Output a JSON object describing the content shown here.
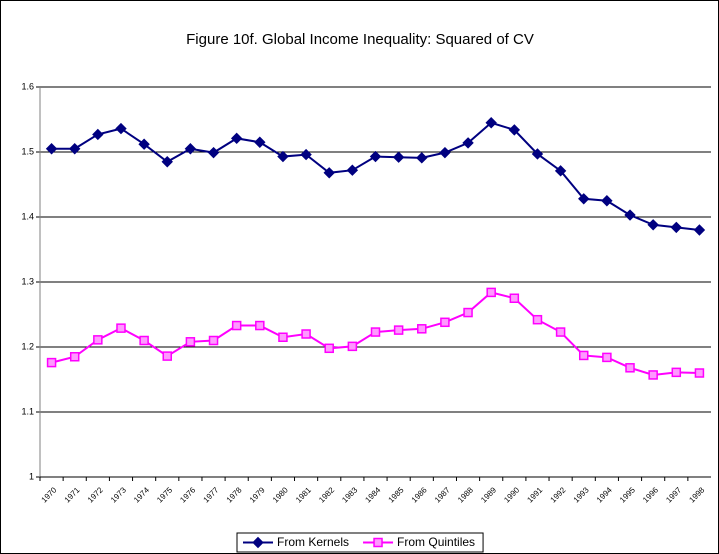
{
  "chart_data": {
    "type": "line",
    "title": "Figure 10f. Global Income Inequality: Squared of CV",
    "categories": [
      "1970",
      "1971",
      "1972",
      "1973",
      "1974",
      "1975",
      "1976",
      "1977",
      "1978",
      "1979",
      "1980",
      "1981",
      "1982",
      "1983",
      "1984",
      "1985",
      "1986",
      "1987",
      "1988",
      "1989",
      "1990",
      "1991",
      "1992",
      "1993",
      "1994",
      "1995",
      "1996",
      "1997",
      "1998"
    ],
    "series": [
      {
        "name": "From Kernels",
        "color": "#000080",
        "marker": "diamond",
        "values": [
          1.505,
          1.505,
          1.527,
          1.536,
          1.512,
          1.485,
          1.505,
          1.499,
          1.521,
          1.515,
          1.493,
          1.496,
          1.468,
          1.472,
          1.493,
          1.492,
          1.491,
          1.499,
          1.514,
          1.545,
          1.534,
          1.497,
          1.471,
          1.428,
          1.425,
          1.403,
          1.388,
          1.384,
          1.38
        ]
      },
      {
        "name": "From Quintiles",
        "color": "#ff00ff",
        "marker": "square",
        "values": [
          1.176,
          1.185,
          1.211,
          1.229,
          1.21,
          1.186,
          1.208,
          1.21,
          1.233,
          1.233,
          1.215,
          1.22,
          1.198,
          1.201,
          1.223,
          1.226,
          1.228,
          1.238,
          1.253,
          1.284,
          1.275,
          1.242,
          1.223,
          1.187,
          1.184,
          1.168,
          1.157,
          1.161,
          1.16
        ]
      }
    ],
    "ylim": [
      1,
      1.6
    ],
    "yticks": [
      1,
      1.1,
      1.2,
      1.3,
      1.4,
      1.5,
      1.6
    ],
    "grid": true,
    "legend": "bottom"
  }
}
